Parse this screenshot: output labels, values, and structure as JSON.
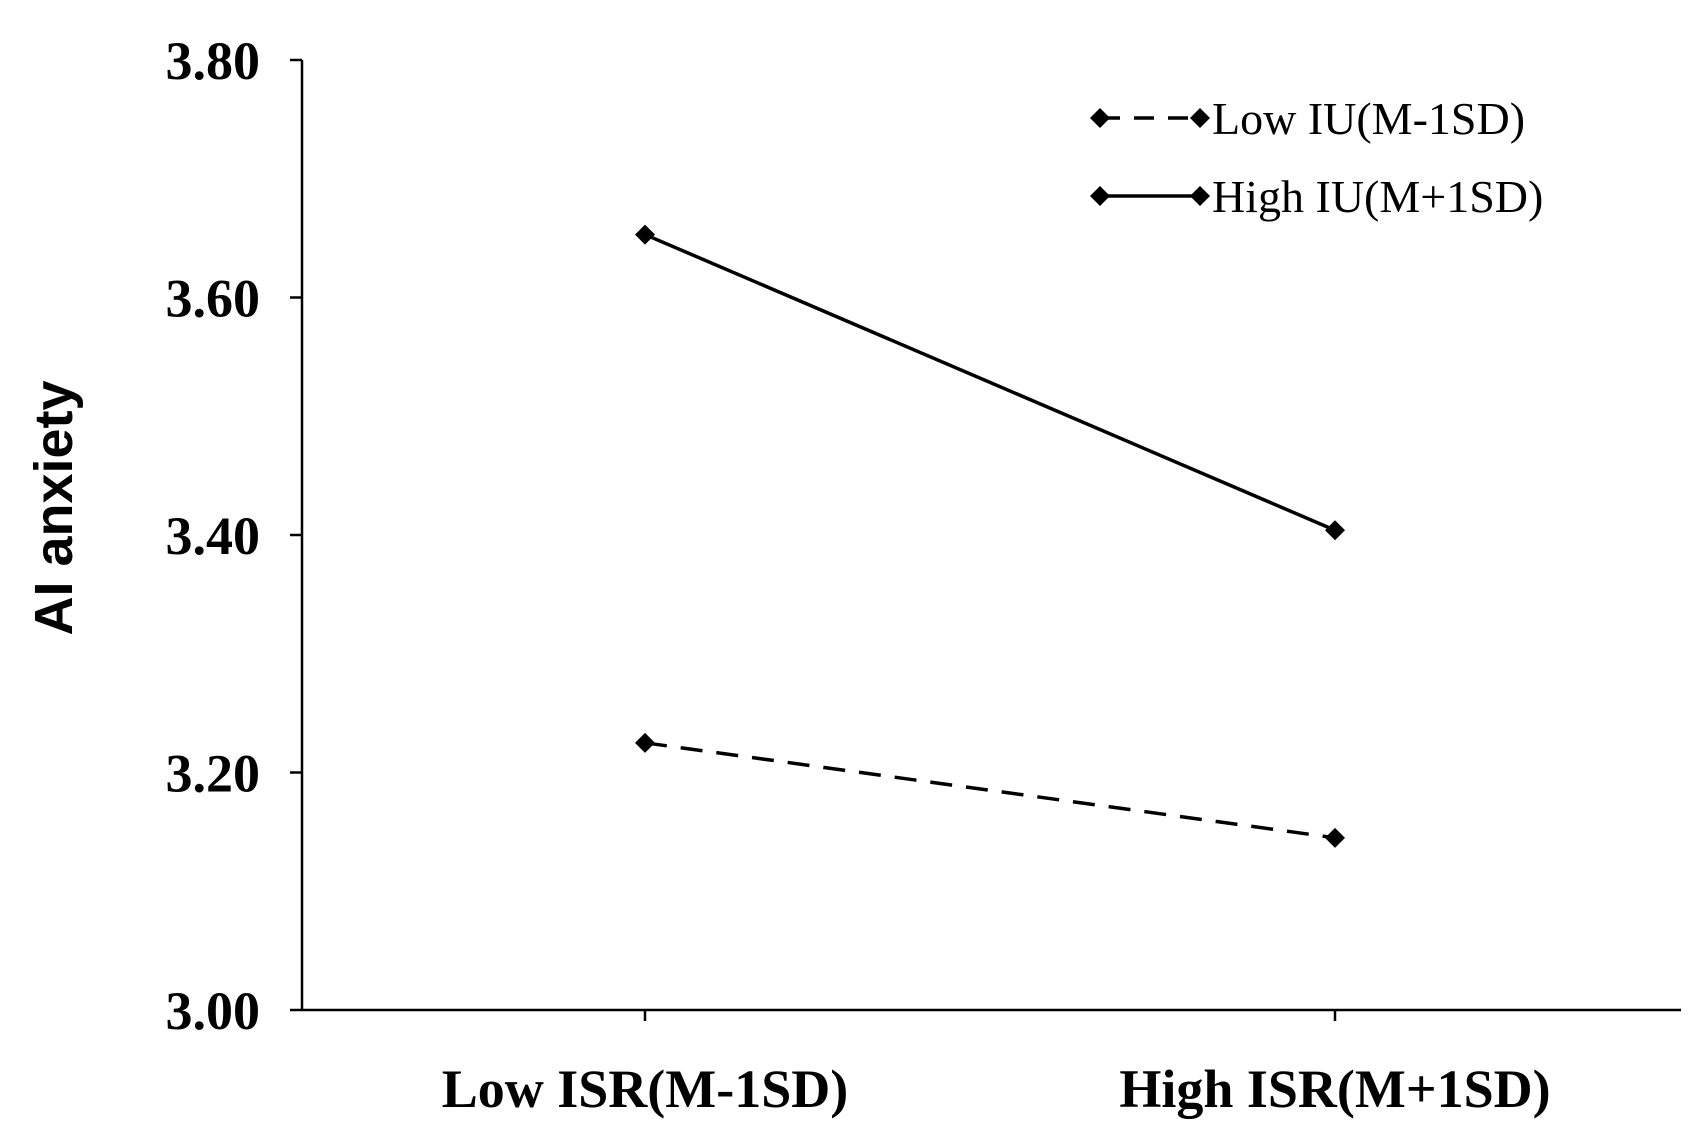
{
  "chart_data": {
    "type": "line",
    "title": "",
    "xlabel": "",
    "ylabel": "AI anxiety",
    "categories": [
      "Low ISR(M-1SD)",
      "High ISR(M+1SD)"
    ],
    "ylim": [
      3.0,
      3.8
    ],
    "yticks": [
      "3.00",
      "3.20",
      "3.40",
      "3.60",
      "3.80"
    ],
    "grid": false,
    "legend_position": "top-right",
    "series": [
      {
        "name": "Low IU(M-1SD)",
        "values": [
          3.225,
          3.145
        ],
        "line_style": "dashed",
        "marker": "diamond",
        "color": "#000000"
      },
      {
        "name": "High IU(M+1SD)",
        "values": [
          3.653,
          3.404
        ],
        "line_style": "solid",
        "marker": "diamond",
        "color": "#000000"
      }
    ]
  }
}
